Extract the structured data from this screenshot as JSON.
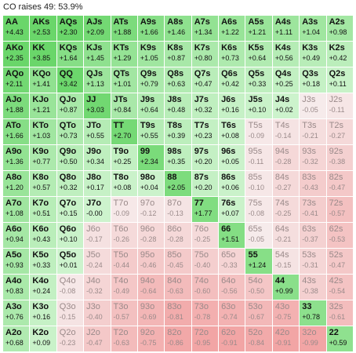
{
  "title": "CO raises 49: 53.9%",
  "colors": {
    "strong_green": "#6ad66a",
    "light_green": "#cdf3cd",
    "neutral": "#f6efef",
    "light_red": "#f3d0d0",
    "red": "#f2a5a5",
    "text_dark": "#111111",
    "text_muted": "#9a8a8a"
  },
  "grid": [
    [
      {
        "hand": "AA",
        "ev": "+4.43"
      },
      {
        "hand": "AKs",
        "ev": "+2.53"
      },
      {
        "hand": "AQs",
        "ev": "+2.30"
      },
      {
        "hand": "AJs",
        "ev": "+2.09"
      },
      {
        "hand": "ATs",
        "ev": "+1.88"
      },
      {
        "hand": "A9s",
        "ev": "+1.66"
      },
      {
        "hand": "A8s",
        "ev": "+1.46"
      },
      {
        "hand": "A7s",
        "ev": "+1.34"
      },
      {
        "hand": "A6s",
        "ev": "+1.22"
      },
      {
        "hand": "A5s",
        "ev": "+1.21"
      },
      {
        "hand": "A4s",
        "ev": "+1.11"
      },
      {
        "hand": "A3s",
        "ev": "+1.04"
      },
      {
        "hand": "A2s",
        "ev": "+0.98"
      }
    ],
    [
      {
        "hand": "AKo",
        "ev": "+2.35"
      },
      {
        "hand": "KK",
        "ev": "+3.85"
      },
      {
        "hand": "KQs",
        "ev": "+1.64"
      },
      {
        "hand": "KJs",
        "ev": "+1.45"
      },
      {
        "hand": "KTs",
        "ev": "+1.29"
      },
      {
        "hand": "K9s",
        "ev": "+1.05"
      },
      {
        "hand": "K8s",
        "ev": "+0.87"
      },
      {
        "hand": "K7s",
        "ev": "+0.80"
      },
      {
        "hand": "K6s",
        "ev": "+0.73"
      },
      {
        "hand": "K5s",
        "ev": "+0.64"
      },
      {
        "hand": "K4s",
        "ev": "+0.56"
      },
      {
        "hand": "K3s",
        "ev": "+0.49"
      },
      {
        "hand": "K2s",
        "ev": "+0.42"
      }
    ],
    [
      {
        "hand": "AQo",
        "ev": "+2.11"
      },
      {
        "hand": "KQo",
        "ev": "+1.41"
      },
      {
        "hand": "QQ",
        "ev": "+3.42"
      },
      {
        "hand": "QJs",
        "ev": "+1.13"
      },
      {
        "hand": "QTs",
        "ev": "+1.01"
      },
      {
        "hand": "Q9s",
        "ev": "+0.79"
      },
      {
        "hand": "Q8s",
        "ev": "+0.63"
      },
      {
        "hand": "Q7s",
        "ev": "+0.47"
      },
      {
        "hand": "Q6s",
        "ev": "+0.42"
      },
      {
        "hand": "Q5s",
        "ev": "+0.33"
      },
      {
        "hand": "Q4s",
        "ev": "+0.25"
      },
      {
        "hand": "Q3s",
        "ev": "+0.18"
      },
      {
        "hand": "Q2s",
        "ev": "+0.11"
      }
    ],
    [
      {
        "hand": "AJo",
        "ev": "+1.88"
      },
      {
        "hand": "KJo",
        "ev": "+1.21"
      },
      {
        "hand": "QJo",
        "ev": "+0.87"
      },
      {
        "hand": "JJ",
        "ev": "+3.03"
      },
      {
        "hand": "JTs",
        "ev": "+0.84"
      },
      {
        "hand": "J9s",
        "ev": "+0.64"
      },
      {
        "hand": "J8s",
        "ev": "+0.48"
      },
      {
        "hand": "J7s",
        "ev": "+0.32"
      },
      {
        "hand": "J6s",
        "ev": "+0.16"
      },
      {
        "hand": "J5s",
        "ev": "+0.10"
      },
      {
        "hand": "J4s",
        "ev": "+0.02"
      },
      {
        "hand": "J3s",
        "ev": "-0.05"
      },
      {
        "hand": "J2s",
        "ev": "-0.11"
      }
    ],
    [
      {
        "hand": "ATo",
        "ev": "+1.66"
      },
      {
        "hand": "KTo",
        "ev": "+1.03"
      },
      {
        "hand": "QTo",
        "ev": "+0.73"
      },
      {
        "hand": "JTo",
        "ev": "+0.55"
      },
      {
        "hand": "TT",
        "ev": "+2.70"
      },
      {
        "hand": "T9s",
        "ev": "+0.55"
      },
      {
        "hand": "T8s",
        "ev": "+0.39"
      },
      {
        "hand": "T7s",
        "ev": "+0.23"
      },
      {
        "hand": "T6s",
        "ev": "+0.08"
      },
      {
        "hand": "T5s",
        "ev": "-0.09"
      },
      {
        "hand": "T4s",
        "ev": "-0.14"
      },
      {
        "hand": "T3s",
        "ev": "-0.21"
      },
      {
        "hand": "T2s",
        "ev": "-0.27"
      }
    ],
    [
      {
        "hand": "A9o",
        "ev": "+1.36"
      },
      {
        "hand": "K9o",
        "ev": "+0.77"
      },
      {
        "hand": "Q9o",
        "ev": "+0.50"
      },
      {
        "hand": "J9o",
        "ev": "+0.34"
      },
      {
        "hand": "T9o",
        "ev": "+0.25"
      },
      {
        "hand": "99",
        "ev": "+2.34"
      },
      {
        "hand": "98s",
        "ev": "+0.35"
      },
      {
        "hand": "97s",
        "ev": "+0.20"
      },
      {
        "hand": "96s",
        "ev": "+0.05"
      },
      {
        "hand": "95s",
        "ev": "-0.11"
      },
      {
        "hand": "94s",
        "ev": "-0.28"
      },
      {
        "hand": "93s",
        "ev": "-0.32"
      },
      {
        "hand": "92s",
        "ev": "-0.38"
      }
    ],
    [
      {
        "hand": "A8o",
        "ev": "+1.20"
      },
      {
        "hand": "K8o",
        "ev": "+0.57"
      },
      {
        "hand": "Q8o",
        "ev": "+0.32"
      },
      {
        "hand": "J8o",
        "ev": "+0.17"
      },
      {
        "hand": "T8o",
        "ev": "+0.08"
      },
      {
        "hand": "98o",
        "ev": "+0.04"
      },
      {
        "hand": "88",
        "ev": "+2.05"
      },
      {
        "hand": "87s",
        "ev": "+0.20"
      },
      {
        "hand": "86s",
        "ev": "+0.06"
      },
      {
        "hand": "85s",
        "ev": "-0.10"
      },
      {
        "hand": "84s",
        "ev": "-0.27"
      },
      {
        "hand": "83s",
        "ev": "-0.43"
      },
      {
        "hand": "82s",
        "ev": "-0.47"
      }
    ],
    [
      {
        "hand": "A7o",
        "ev": "+1.08"
      },
      {
        "hand": "K7o",
        "ev": "+0.51"
      },
      {
        "hand": "Q7o",
        "ev": "+0.15"
      },
      {
        "hand": "J7o",
        "ev": "-0.00"
      },
      {
        "hand": "T7o",
        "ev": "-0.09"
      },
      {
        "hand": "97o",
        "ev": "-0.12"
      },
      {
        "hand": "87o",
        "ev": "-0.13"
      },
      {
        "hand": "77",
        "ev": "+1.77"
      },
      {
        "hand": "76s",
        "ev": "+0.07"
      },
      {
        "hand": "75s",
        "ev": "-0.08"
      },
      {
        "hand": "74s",
        "ev": "-0.25"
      },
      {
        "hand": "73s",
        "ev": "-0.41"
      },
      {
        "hand": "72s",
        "ev": "-0.57"
      }
    ],
    [
      {
        "hand": "A6o",
        "ev": "+0.94"
      },
      {
        "hand": "K6o",
        "ev": "+0.43"
      },
      {
        "hand": "Q6o",
        "ev": "+0.10"
      },
      {
        "hand": "J6o",
        "ev": "-0.17"
      },
      {
        "hand": "T6o",
        "ev": "-0.26"
      },
      {
        "hand": "96o",
        "ev": "-0.28"
      },
      {
        "hand": "86o",
        "ev": "-0.28"
      },
      {
        "hand": "76o",
        "ev": "-0.25"
      },
      {
        "hand": "66",
        "ev": "+1.51"
      },
      {
        "hand": "65s",
        "ev": "-0.05"
      },
      {
        "hand": "64s",
        "ev": "-0.21"
      },
      {
        "hand": "63s",
        "ev": "-0.37"
      },
      {
        "hand": "62s",
        "ev": "-0.53"
      }
    ],
    [
      {
        "hand": "A5o",
        "ev": "+0.93"
      },
      {
        "hand": "K5o",
        "ev": "+0.33"
      },
      {
        "hand": "Q5o",
        "ev": "+0.01"
      },
      {
        "hand": "J5o",
        "ev": "-0.24"
      },
      {
        "hand": "T5o",
        "ev": "-0.44"
      },
      {
        "hand": "95o",
        "ev": "-0.46"
      },
      {
        "hand": "85o",
        "ev": "-0.45"
      },
      {
        "hand": "75o",
        "ev": "-0.40"
      },
      {
        "hand": "65o",
        "ev": "-0.33"
      },
      {
        "hand": "55",
        "ev": "+1.24"
      },
      {
        "hand": "54s",
        "ev": "-0.15"
      },
      {
        "hand": "53s",
        "ev": "-0.31"
      },
      {
        "hand": "52s",
        "ev": "-0.47"
      }
    ],
    [
      {
        "hand": "A4o",
        "ev": "+0.83"
      },
      {
        "hand": "K4o",
        "ev": "+0.24"
      },
      {
        "hand": "Q4o",
        "ev": "-0.08"
      },
      {
        "hand": "J4o",
        "ev": "-0.32"
      },
      {
        "hand": "T4o",
        "ev": "-0.49"
      },
      {
        "hand": "94o",
        "ev": "-0.64"
      },
      {
        "hand": "84o",
        "ev": "-0.63"
      },
      {
        "hand": "74o",
        "ev": "-0.60"
      },
      {
        "hand": "64o",
        "ev": "-0.56"
      },
      {
        "hand": "54o",
        "ev": "-0.50"
      },
      {
        "hand": "44",
        "ev": "+0.99"
      },
      {
        "hand": "43s",
        "ev": "-0.38"
      },
      {
        "hand": "42s",
        "ev": "-0.54"
      }
    ],
    [
      {
        "hand": "A3o",
        "ev": "+0.76"
      },
      {
        "hand": "K3o",
        "ev": "+0.16"
      },
      {
        "hand": "Q3o",
        "ev": "-0.15"
      },
      {
        "hand": "J3o",
        "ev": "-0.40"
      },
      {
        "hand": "T3o",
        "ev": "-0.57"
      },
      {
        "hand": "93o",
        "ev": "-0.69"
      },
      {
        "hand": "83o",
        "ev": "-0.81"
      },
      {
        "hand": "73o",
        "ev": "-0.78"
      },
      {
        "hand": "63o",
        "ev": "-0.74"
      },
      {
        "hand": "53o",
        "ev": "-0.67"
      },
      {
        "hand": "43o",
        "ev": "-0.75"
      },
      {
        "hand": "33",
        "ev": "+0.78"
      },
      {
        "hand": "32s",
        "ev": "-0.61"
      }
    ],
    [
      {
        "hand": "A2o",
        "ev": "+0.68"
      },
      {
        "hand": "K2o",
        "ev": "+0.09"
      },
      {
        "hand": "Q2o",
        "ev": "-0.23"
      },
      {
        "hand": "J2o",
        "ev": "-0.47"
      },
      {
        "hand": "T2o",
        "ev": "-0.63"
      },
      {
        "hand": "92o",
        "ev": "-0.75"
      },
      {
        "hand": "82o",
        "ev": "-0.86"
      },
      {
        "hand": "72o",
        "ev": "-0.95"
      },
      {
        "hand": "62o",
        "ev": "-0.91"
      },
      {
        "hand": "52o",
        "ev": "-0.84"
      },
      {
        "hand": "42o",
        "ev": "-0.91"
      },
      {
        "hand": "32o",
        "ev": "-0.99"
      },
      {
        "hand": "22",
        "ev": "+0.59"
      }
    ]
  ]
}
